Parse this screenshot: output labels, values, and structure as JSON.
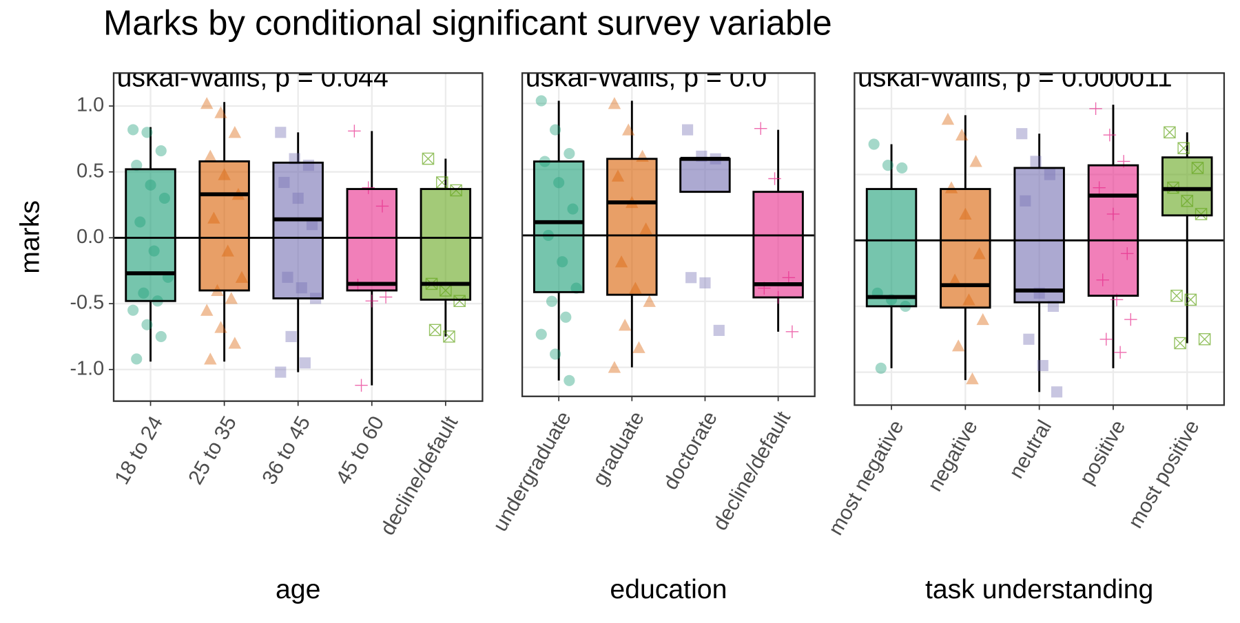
{
  "chart_data": [
    {
      "type": "box",
      "title": "Marks by conditional significant survey variable",
      "annotation": "uskal-Wallis, p = 0.044",
      "x_label": "age",
      "y_label": "marks",
      "categories": [
        "18 to 24",
        "25 to 35",
        "36 to 45",
        "45 to 60",
        "decline/default"
      ],
      "colors": [
        "#1b9e77",
        "#d95f02",
        "#7570b3",
        "#e7298a",
        "#66a61e"
      ],
      "ylim": [
        -1.24,
        1.25
      ],
      "yticks": [
        {
          "value": -1,
          "label": "-1.0"
        },
        {
          "value": -0.5,
          "label": "-0.5"
        },
        {
          "value": 0,
          "label": "0.0"
        },
        {
          "value": 0.5,
          "label": "0.5"
        },
        {
          "value": 1,
          "label": "1.0"
        }
      ],
      "tick_labels": true,
      "grid": true,
      "hline": 0,
      "boxes": [
        {
          "min": -0.94,
          "q1": -0.48,
          "median": -0.27,
          "q3": 0.52,
          "max": 0.84,
          "points": [
            0.82,
            0.8,
            0.66,
            0.55,
            0.4,
            0.3,
            0.12,
            -0.1,
            -0.3,
            -0.42,
            -0.48,
            -0.55,
            -0.66,
            -0.75,
            -0.92
          ]
        },
        {
          "min": -0.94,
          "q1": -0.4,
          "median": 0.33,
          "q3": 0.58,
          "max": 1.03,
          "points": [
            1.02,
            0.95,
            0.8,
            0.62,
            0.48,
            0.33,
            0.15,
            -0.1,
            -0.3,
            -0.4,
            -0.46,
            -0.55,
            -0.68,
            -0.8,
            -0.92
          ]
        },
        {
          "min": -1.02,
          "q1": -0.46,
          "median": 0.14,
          "q3": 0.57,
          "max": 0.8,
          "points": [
            0.8,
            0.6,
            0.55,
            0.42,
            0.3,
            0.1,
            -0.3,
            -0.38,
            -0.46,
            -0.75,
            -0.95,
            -1.02
          ]
        },
        {
          "min": -1.12,
          "q1": -0.4,
          "median": -0.35,
          "q3": 0.37,
          "max": 0.81,
          "points": [
            0.81,
            0.38,
            0.24,
            -0.36,
            -0.48,
            -0.45,
            -1.12
          ]
        },
        {
          "min": -0.75,
          "q1": -0.47,
          "median": -0.35,
          "q3": 0.37,
          "max": 0.6,
          "points": [
            0.6,
            0.42,
            0.36,
            -0.35,
            -0.4,
            -0.48,
            -0.7,
            -0.75
          ]
        }
      ]
    },
    {
      "type": "box",
      "annotation": "uskal-Wallis, p = 0.0",
      "x_label": "education",
      "categories": [
        "undergraduate",
        "graduate",
        "doctorate",
        "decline/default"
      ],
      "colors": [
        "#1b9e77",
        "#d95f02",
        "#7570b3",
        "#e7298a"
      ],
      "ylim": [
        -1.22,
        1.23
      ],
      "yticks": [
        -1,
        -0.5,
        0,
        0.5,
        1
      ],
      "tick_labels": false,
      "grid": true,
      "hline": 0,
      "boxes": [
        {
          "min": -1.1,
          "q1": -0.43,
          "median": 0.1,
          "q3": 0.56,
          "max": 1.02,
          "points": [
            1.02,
            0.8,
            0.62,
            0.56,
            0.4,
            0.2,
            0.0,
            -0.2,
            -0.4,
            -0.5,
            -0.62,
            -0.75,
            -0.9,
            -1.1
          ]
        },
        {
          "min": -1.0,
          "q1": -0.45,
          "median": 0.25,
          "q3": 0.58,
          "max": 1.02,
          "points": [
            1.0,
            0.8,
            0.6,
            0.45,
            0.25,
            0.05,
            -0.2,
            -0.4,
            -0.5,
            -0.68,
            -0.85,
            -1.0
          ]
        },
        {
          "min": 0.33,
          "q1": 0.33,
          "median": 0.58,
          "q3": 0.58,
          "max": 0.58,
          "points": [
            0.8,
            0.6,
            0.58,
            -0.32,
            -0.36,
            -0.72
          ]
        },
        {
          "min": -0.73,
          "q1": -0.47,
          "median": -0.37,
          "q3": 0.33,
          "max": 0.8,
          "points": [
            0.81,
            0.43,
            -0.32,
            -0.4,
            -0.47,
            -0.73
          ]
        }
      ]
    },
    {
      "type": "box",
      "annotation": "uskal-Wallis, p = 0.000011",
      "x_label": "task understanding",
      "categories": [
        "most negative",
        "negative",
        "neutral",
        "positive",
        "most positive"
      ],
      "colors": [
        "#1b9e77",
        "#d95f02",
        "#7570b3",
        "#e7298a",
        "#66a61e"
      ],
      "ylim": [
        -1.25,
        1.27
      ],
      "yticks": [
        -1,
        -0.5,
        0,
        0.5,
        1
      ],
      "tick_labels": false,
      "grid": true,
      "hline": 0,
      "boxes": [
        {
          "min": -0.97,
          "q1": -0.5,
          "median": -0.43,
          "q3": 0.39,
          "max": 0.73,
          "points": [
            0.73,
            0.57,
            0.55,
            -0.4,
            -0.45,
            -0.5,
            -0.97
          ]
        },
        {
          "min": -1.06,
          "q1": -0.51,
          "median": -0.34,
          "q3": 0.39,
          "max": 0.95,
          "points": [
            0.92,
            0.8,
            0.6,
            0.4,
            0.2,
            -0.1,
            -0.3,
            -0.45,
            -0.6,
            -0.8,
            -1.05
          ]
        },
        {
          "min": -1.15,
          "q1": -0.47,
          "median": -0.38,
          "q3": 0.55,
          "max": 0.81,
          "points": [
            0.81,
            0.6,
            0.5,
            0.3,
            -0.4,
            -0.5,
            -0.75,
            -0.95,
            -1.15
          ]
        },
        {
          "min": -0.97,
          "q1": -0.42,
          "median": 0.34,
          "q3": 0.57,
          "max": 1.03,
          "points": [
            1.0,
            0.8,
            0.6,
            0.4,
            0.2,
            -0.1,
            -0.3,
            -0.45,
            -0.6,
            -0.75,
            -0.85
          ]
        },
        {
          "min": -0.78,
          "q1": 0.19,
          "median": 0.39,
          "q3": 0.63,
          "max": 0.82,
          "points": [
            0.82,
            0.7,
            0.55,
            0.4,
            0.3,
            0.2,
            -0.42,
            -0.45,
            -0.75,
            -0.78
          ]
        }
      ]
    }
  ]
}
